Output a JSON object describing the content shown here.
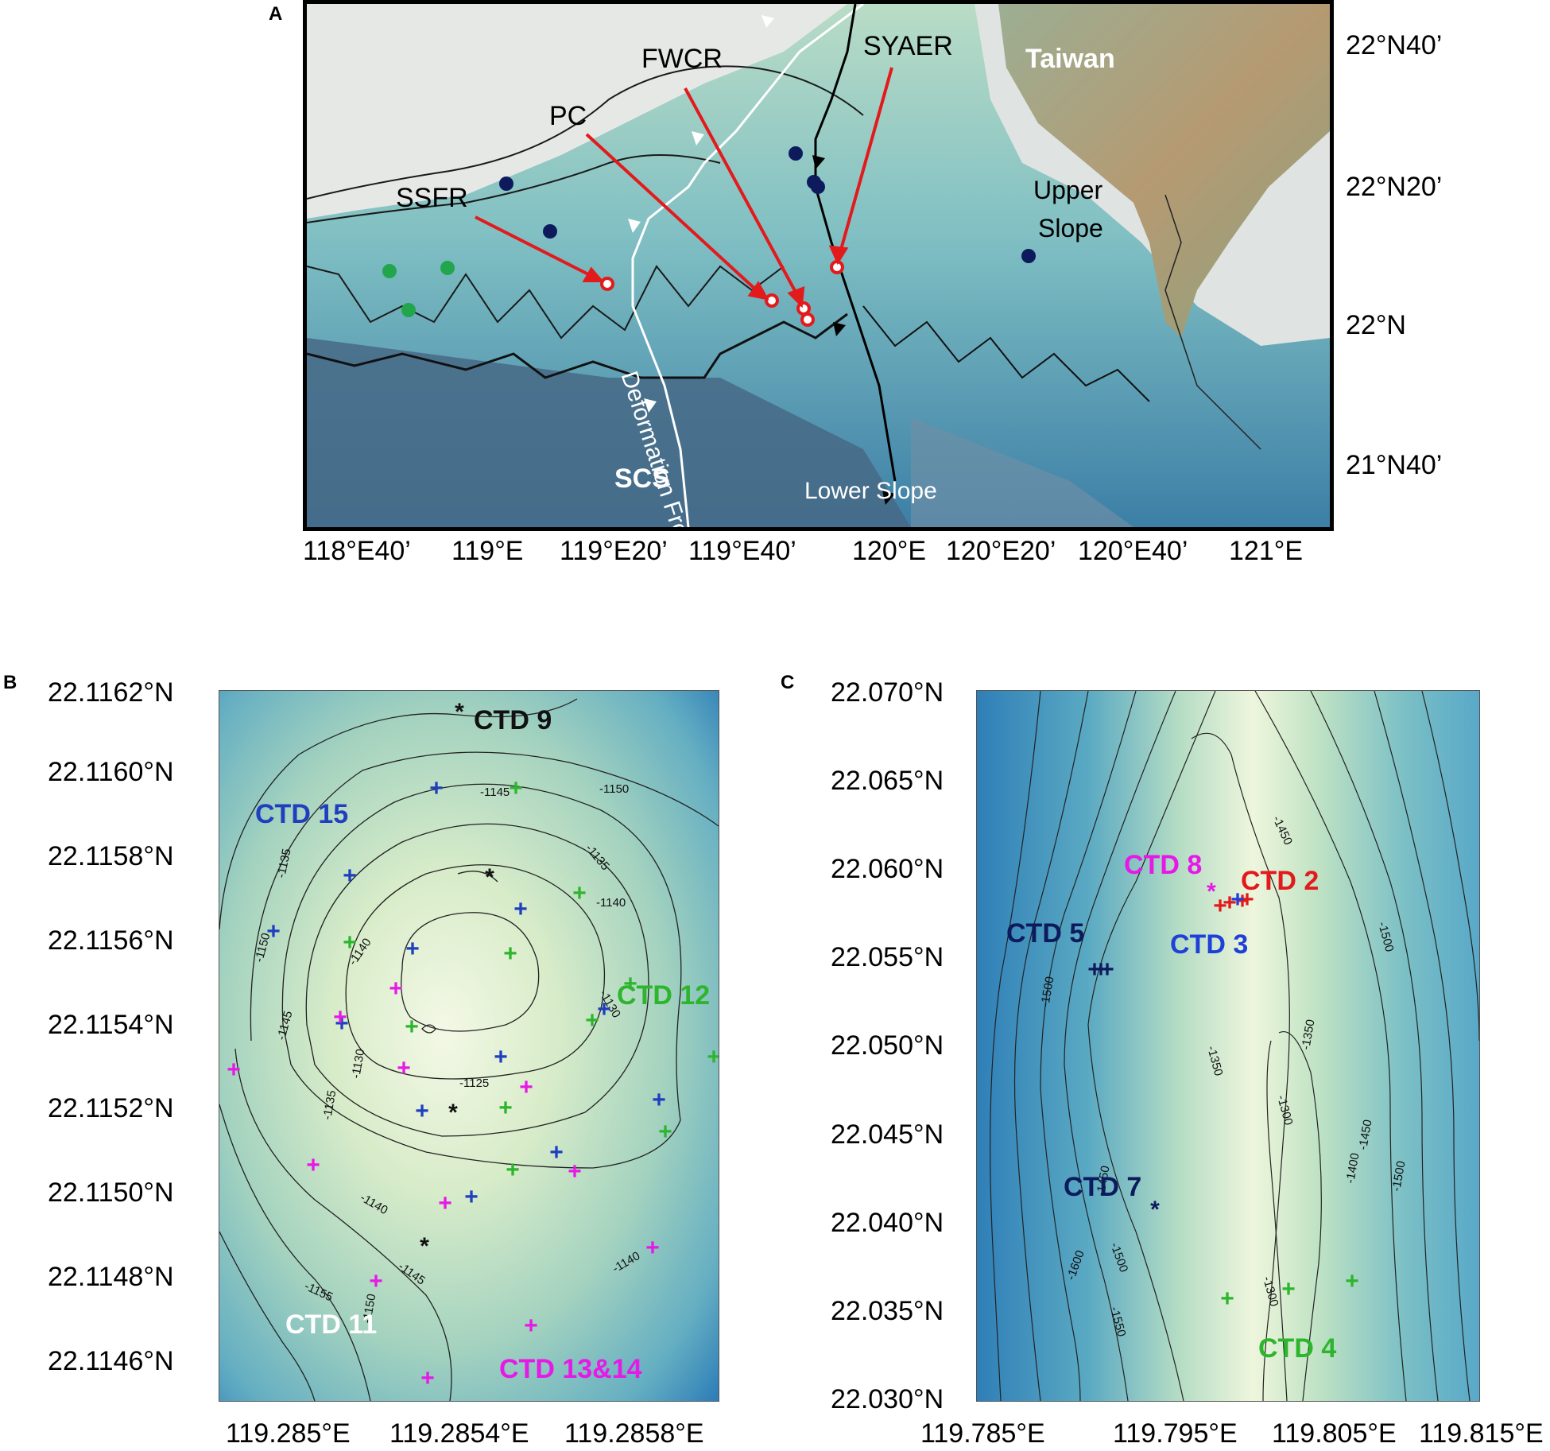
{
  "panel_a": {
    "letter": "A",
    "lon_ticks": [
      "118°E40’",
      "119°E",
      "119°E20’",
      "119°E40’",
      "120°E",
      "120°E20’",
      "120°E40’",
      "121°E"
    ],
    "lat_ticks": [
      "22°N40’",
      "22°N20’",
      "22°N",
      "21°N40’"
    ],
    "region_labels": {
      "taiwan": "Taiwan",
      "upper_slope_1": "Upper",
      "upper_slope_2": "Slope",
      "scs": "SCS",
      "lower_slope": "Lower Slope",
      "deformation_front": "Deformation Front"
    },
    "site_labels": {
      "ssfr": "SSFR",
      "pc": "PC",
      "fwcr": "FWCR",
      "syaer": "SYAER"
    },
    "colors": {
      "site_marker": "#e31a1c",
      "navy_station": "#0d1b5c",
      "green_station": "#22a64b",
      "deformation_front": "#ffffff",
      "thrust": "#000000"
    }
  },
  "panel_b": {
    "letter": "B",
    "lat_ticks": [
      "22.1162°N",
      "22.1160°N",
      "22.1158°N",
      "22.1156°N",
      "22.1154°N",
      "22.1152°N",
      "22.1150°N",
      "22.1148°N",
      "22.1146°N"
    ],
    "lon_ticks": [
      "119.285°E",
      "119.2854°E",
      "119.2858°E"
    ],
    "ctd_labels": {
      "ctd9": "CTD 9",
      "ctd15": "CTD 15",
      "ctd12": "CTD 12",
      "ctd11": "CTD 11",
      "ctd1314": "CTD 13&14"
    },
    "contour_labels": [
      "-1145",
      "-1150",
      "-1135",
      "-1140",
      "-1150",
      "-1140",
      "-1145",
      "-1130",
      "-1135",
      "-1130",
      "-1125",
      "-1140",
      "-1145",
      "-1155",
      "-1150",
      "-1140",
      "-1135"
    ],
    "colors": {
      "blue": "#1f3fbf",
      "green": "#2db52d",
      "magenta": "#e619e6",
      "black": "#111111",
      "white_label": "#ffffff"
    }
  },
  "panel_c": {
    "letter": "C",
    "lat_ticks": [
      "22.070°N",
      "22.065°N",
      "22.060°N",
      "22.055°N",
      "22.050°N",
      "22.045°N",
      "22.040°N",
      "22.035°N",
      "22.030°N"
    ],
    "lon_ticks": [
      "119.785°E",
      "119.795°E",
      "119.805°E",
      "119.815°E"
    ],
    "ctd_labels": {
      "ctd8": "CTD 8",
      "ctd2": "CTD 2",
      "ctd5": "CTD 5",
      "ctd3": "CTD 3",
      "ctd7": "CTD 7",
      "ctd4": "CTD 4"
    },
    "contour_labels": [
      "-1450",
      "-1500",
      "-1500",
      "-1350",
      "-1350",
      "-1300",
      "-1450",
      "-1400",
      "-1500",
      "-1450",
      "-1500",
      "-1550",
      "-1600",
      "-1300"
    ],
    "colors": {
      "navy": "#0d1b5c",
      "blue": "#1f3fd9",
      "red": "#e31a1c",
      "magenta": "#e619e6",
      "green": "#2db52d"
    }
  }
}
